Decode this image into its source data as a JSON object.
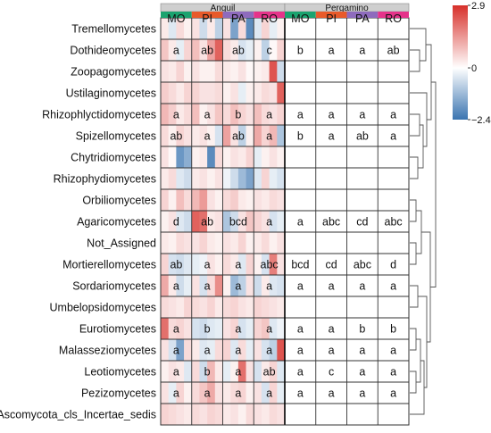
{
  "chart_data": {
    "type": "heatmap",
    "sites": [
      "Anguil",
      "Pergamino"
    ],
    "treatments": [
      {
        "label": "MO",
        "color": "#1aa36f"
      },
      {
        "label": "PI",
        "color": "#e85a2a"
      },
      {
        "label": "PA",
        "color": "#8e6bbd"
      },
      {
        "label": "RO",
        "color": "#e5338a"
      }
    ],
    "rows": [
      "Tremellomycetes",
      "Dothideomycetes",
      "Zoopagomycetes",
      "Ustilaginomycetes",
      "Rhizophlyctidomycetes",
      "Spizellomycetes",
      "Chytridiomycetes",
      "Rhizophydiomycetes",
      "Orbiliomycetes",
      "Agaricomycetes",
      "Not_Assigned",
      "Mortierellomycetes",
      "Sordariomycetes",
      "Umbelopsidomycetes",
      "Eurotiomycetes",
      "Malasseziomycetes",
      "Leotiomycetes",
      "Pezizomycetes",
      "Ascomycota_cls_Incertae_sedis"
    ],
    "letters": [
      [
        "",
        "",
        "",
        "",
        "",
        "",
        "",
        ""
      ],
      [
        "a",
        "ab",
        "ab",
        "c",
        "b",
        "a",
        "a",
        "ab"
      ],
      [
        "",
        "",
        "",
        "",
        "",
        "",
        "",
        ""
      ],
      [
        "",
        "",
        "",
        "",
        "",
        "",
        "",
        ""
      ],
      [
        "a",
        "a",
        "b",
        "a",
        "a",
        "a",
        "a",
        "a"
      ],
      [
        "ab",
        "a",
        "ab",
        "a",
        "b",
        "a",
        "ab",
        "a"
      ],
      [
        "",
        "",
        "",
        "",
        "",
        "",
        "",
        ""
      ],
      [
        "",
        "",
        "",
        "",
        "",
        "",
        "",
        ""
      ],
      [
        "",
        "",
        "",
        "",
        "",
        "",
        "",
        ""
      ],
      [
        "d",
        "ab",
        "bcd",
        "a",
        "a",
        "abc",
        "cd",
        "abc"
      ],
      [
        "",
        "",
        "",
        "",
        "",
        "",
        "",
        ""
      ],
      [
        "ab",
        "a",
        "a",
        "abc",
        "bcd",
        "cd",
        "abc",
        "d"
      ],
      [
        "a",
        "a",
        "a",
        "a",
        "a",
        "a",
        "a",
        "a"
      ],
      [
        "",
        "",
        "",
        "",
        "",
        "",
        "",
        ""
      ],
      [
        "a",
        "b",
        "a",
        "a",
        "a",
        "a",
        "b",
        "b"
      ],
      [
        "a",
        "a",
        "a",
        "a",
        "a",
        "a",
        "a",
        "a"
      ],
      [
        "a",
        "b",
        "a",
        "ab",
        "a",
        "c",
        "a",
        "a"
      ],
      [
        "a",
        "a",
        "a",
        "a",
        "a",
        "a",
        "a",
        "a"
      ],
      [
        "",
        "",
        "",
        "",
        "",
        "",
        "",
        ""
      ]
    ],
    "values": [
      [
        0.3,
        -0.4,
        0.5,
        0.2,
        0.4,
        -0.6,
        0.3,
        -0.8,
        0.4,
        -1.6,
        0.5,
        -2.0,
        -0.4,
        0.6,
        -0.3,
        0.2
      ],
      [
        0.8,
        0.3,
        -0.3,
        0.6,
        0.9,
        0.4,
        1.3,
        2.2,
        0.5,
        0.3,
        -0.5,
        -0.3,
        0.2,
        -0.8,
        0.1,
        0.6
      ],
      [
        0.4,
        0.3,
        0.6,
        0.2,
        0.4,
        0.2,
        0.2,
        0.5,
        0.3,
        0.2,
        0.4,
        0.1,
        0.2,
        0.3,
        2.4,
        -0.6
      ],
      [
        0.7,
        0.5,
        0.3,
        0.6,
        0.6,
        0.4,
        0.4,
        0.5,
        0.2,
        0.4,
        -0.3,
        0.2,
        0.3,
        0.5,
        0.4,
        2.2
      ],
      [
        1.0,
        0.7,
        0.3,
        0.5,
        0.9,
        0.2,
        0.4,
        0.8,
        0.5,
        0.9,
        0.6,
        0.4,
        0.9,
        0.5,
        0.4,
        0.6
      ],
      [
        0.5,
        0.2,
        0.6,
        0.4,
        0.3,
        0.4,
        0.2,
        -0.5,
        1.3,
        0.4,
        -0.8,
        0.2,
        1.2,
        0.6,
        1.0,
        -1.0
      ],
      [
        0.4,
        0.1,
        -1.8,
        -1.4,
        0.2,
        0.3,
        -2.0,
        0.5,
        0.2,
        0.4,
        0.3,
        0.6,
        -0.3,
        0.2,
        0.4,
        0.2
      ],
      [
        0.3,
        0.5,
        -0.4,
        -0.6,
        0.3,
        0.4,
        0.2,
        0.4,
        -0.2,
        -0.6,
        -1.2,
        -1.6,
        -0.4,
        0.6,
        -0.3,
        -0.5
      ],
      [
        0.6,
        0.2,
        0.9,
        0.5,
        1.0,
        1.4,
        0.4,
        0.2,
        0.5,
        0.7,
        0.3,
        0.2,
        0.4,
        0.3,
        0.5,
        0.4
      ],
      [
        0.2,
        0.4,
        -0.4,
        -0.6,
        2.2,
        2.0,
        0.3,
        0.4,
        -1.0,
        -0.6,
        0.4,
        0.8,
        0.6,
        0.4,
        -0.5,
        -0.3
      ],
      [
        0.3,
        0.2,
        0.5,
        0.4,
        0.4,
        0.6,
        0.3,
        0.2,
        0.4,
        0.3,
        0.6,
        0.2,
        0.3,
        0.5,
        0.2,
        0.4
      ],
      [
        0.6,
        -0.5,
        -0.6,
        -0.4,
        -0.3,
        -0.2,
        0.4,
        0.2,
        0.5,
        0.3,
        -0.4,
        0.6,
        0.2,
        -0.5,
        1.8,
        0.4
      ],
      [
        1.2,
        0.3,
        -0.6,
        -0.3,
        0.4,
        -0.5,
        0.5,
        1.6,
        0.2,
        -1.2,
        -0.8,
        0.4,
        -0.6,
        0.3,
        -0.4,
        -0.5
      ],
      [
        0.5,
        0.4,
        0.3,
        0.6,
        0.5,
        0.4,
        0.6,
        0.3,
        0.5,
        0.6,
        0.4,
        0.3,
        0.6,
        0.5,
        0.4,
        0.3
      ],
      [
        2.0,
        0.5,
        0.6,
        0.4,
        -0.5,
        -0.6,
        -0.4,
        -0.3,
        0.4,
        0.6,
        -0.5,
        -0.3,
        0.6,
        0.8,
        -0.4,
        -0.2
      ],
      [
        0.4,
        -0.5,
        -1.6,
        0.5,
        0.3,
        -0.4,
        -0.3,
        0.5,
        0.6,
        -0.4,
        0.5,
        -0.3,
        0.4,
        -0.5,
        -0.8,
        2.4
      ],
      [
        0.2,
        0.4,
        0.3,
        -0.4,
        0.5,
        -0.6,
        1.0,
        0.3,
        -0.3,
        0.2,
        2.0,
        0.4,
        -0.5,
        0.3,
        0.6,
        -0.4
      ],
      [
        0.4,
        -0.3,
        0.6,
        0.2,
        0.5,
        0.8,
        1.2,
        0.4,
        0.3,
        0.5,
        0.6,
        0.2,
        0.4,
        -0.5,
        0.6,
        -0.3
      ],
      [
        0.6,
        0.5,
        0.4,
        0.3,
        0.5,
        0.4,
        0.6,
        0.5,
        0.3,
        0.4,
        0.2,
        0.5,
        0.4,
        0.3,
        0.5,
        0.4
      ]
    ],
    "colorbar": {
      "min": -2.4,
      "max": 2.9,
      "ticks": [
        {
          "value": 2.9,
          "label": "2.9"
        },
        {
          "value": 0,
          "label": "0"
        },
        {
          "value": -2.4,
          "label": "−2.4"
        }
      ],
      "colors": {
        "low": "#3a74b0",
        "mid": "#ffffff",
        "high": "#d7302a"
      }
    },
    "xlabel": "",
    "ylabel": ""
  }
}
